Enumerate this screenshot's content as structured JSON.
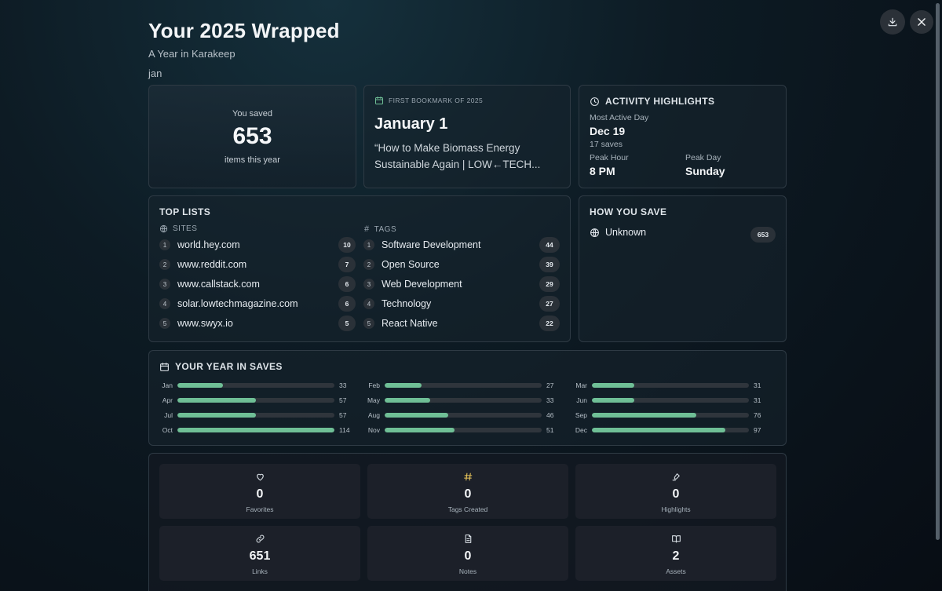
{
  "header": {
    "title": "Your 2025 Wrapped",
    "subtitle": "A Year in Karakeep",
    "username": "jan"
  },
  "total": {
    "pre": "You saved",
    "count": "653",
    "post": "items this year"
  },
  "first_bookmark": {
    "eyebrow": "FIRST BOOKMARK OF 2025",
    "date": "January 1",
    "title_line1": "“How to Make Biomass Energy",
    "title_line2": "Sustainable Again | LOW←TECH..."
  },
  "activity": {
    "title": "ACTIVITY HIGHLIGHTS",
    "most_active_label": "Most Active Day",
    "most_active_value": "Dec 19",
    "most_active_sub": "17 saves",
    "peak_hour_label": "Peak Hour",
    "peak_hour_value": "8 PM",
    "peak_day_label": "Peak Day",
    "peak_day_value": "Sunday"
  },
  "top_lists": {
    "title": "TOP LISTS",
    "sites_label": "SITES",
    "tags_label": "TAGS",
    "sites": [
      {
        "rank": "1",
        "name": "world.hey.com",
        "count": "10"
      },
      {
        "rank": "2",
        "name": "www.reddit.com",
        "count": "7"
      },
      {
        "rank": "3",
        "name": "www.callstack.com",
        "count": "6"
      },
      {
        "rank": "4",
        "name": "solar.lowtechmagazine.com",
        "count": "6"
      },
      {
        "rank": "5",
        "name": "www.swyx.io",
        "count": "5"
      }
    ],
    "tags": [
      {
        "rank": "1",
        "name": "Software Development",
        "count": "44"
      },
      {
        "rank": "2",
        "name": "Open Source",
        "count": "39"
      },
      {
        "rank": "3",
        "name": "Web Development",
        "count": "29"
      },
      {
        "rank": "4",
        "name": "Technology",
        "count": "27"
      },
      {
        "rank": "5",
        "name": "React Native",
        "count": "22"
      }
    ]
  },
  "how_you_save": {
    "title": "HOW YOU SAVE",
    "source": "Unknown",
    "count": "653"
  },
  "year_in_saves": {
    "title": "YOUR YEAR IN SAVES",
    "max": 114,
    "bar_color": "#6fbf96",
    "months": [
      {
        "name": "Jan",
        "count": 33
      },
      {
        "name": "Feb",
        "count": 27
      },
      {
        "name": "Mar",
        "count": 31
      },
      {
        "name": "Apr",
        "count": 57
      },
      {
        "name": "May",
        "count": 33
      },
      {
        "name": "Jun",
        "count": 31
      },
      {
        "name": "Jul",
        "count": 57
      },
      {
        "name": "Aug",
        "count": 46
      },
      {
        "name": "Sep",
        "count": 76
      },
      {
        "name": "Oct",
        "count": 114
      },
      {
        "name": "Nov",
        "count": 51
      },
      {
        "name": "Dec",
        "count": 97
      }
    ]
  },
  "stats": [
    {
      "icon": "heart-icon",
      "value": "0",
      "label": "Favorites",
      "color": "#d9e0e6"
    },
    {
      "icon": "hash-icon",
      "value": "0",
      "label": "Tags Created",
      "color": "#e8c55a"
    },
    {
      "icon": "highlighter-icon",
      "value": "0",
      "label": "Highlights",
      "color": "#d9e0e6"
    },
    {
      "icon": "link-icon",
      "value": "651",
      "label": "Links",
      "color": "#d9e0e6"
    },
    {
      "icon": "note-icon",
      "value": "0",
      "label": "Notes",
      "color": "#d9e0e6"
    },
    {
      "icon": "book-icon",
      "value": "2",
      "label": "Assets",
      "color": "#d9e0e6"
    }
  ],
  "colors": {
    "accent_green": "#6fbf96",
    "hash_yellow": "#e8c55a"
  }
}
